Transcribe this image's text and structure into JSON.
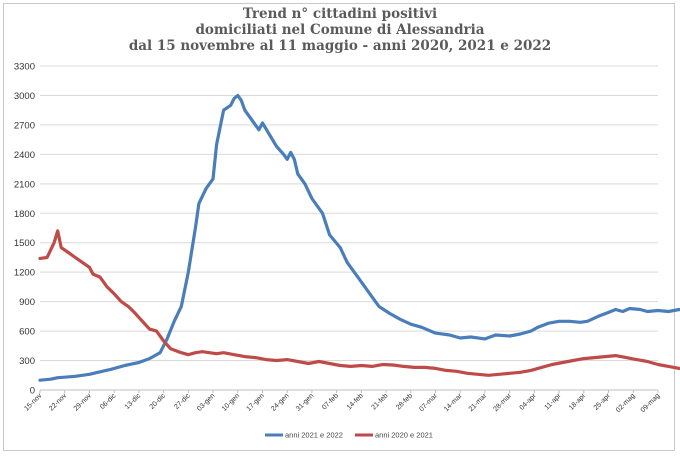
{
  "chart_data": {
    "type": "line",
    "title": [
      "Trend n° cittadini positivi",
      "domiciliati nel Comune di Alessandria",
      "dal 15 novembre al 11 maggio - anni 2020, 2021 e 2022"
    ],
    "xlabel": "",
    "ylabel": "",
    "ylim": [
      0,
      3300
    ],
    "yticks": [
      0,
      300,
      600,
      900,
      1200,
      1500,
      1800,
      2100,
      2400,
      2700,
      3000,
      3300
    ],
    "grid": true,
    "legend_position": "bottom",
    "xticks": [
      "15-nov",
      "22-nov",
      "29-nov",
      "06-dic",
      "13-dic",
      "20-dic",
      "27-dic",
      "03-gen",
      "10-gen",
      "17-gen",
      "24-gen",
      "31-gen",
      "07-feb",
      "14-feb",
      "21-feb",
      "28-feb",
      "07-mar",
      "14-mar",
      "21-mar",
      "28-mar",
      "04-apr",
      "11-apr",
      "18-apr",
      "25-apr",
      "02-mag",
      "09-mag"
    ],
    "series": [
      {
        "name": "anni 2021 e 2022",
        "color": "#4a7ebb",
        "points": [
          [
            0,
            100
          ],
          [
            3,
            110
          ],
          [
            5,
            125
          ],
          [
            7,
            130
          ],
          [
            10,
            140
          ],
          [
            14,
            160
          ],
          [
            17,
            185
          ],
          [
            20,
            210
          ],
          [
            24,
            250
          ],
          [
            28,
            280
          ],
          [
            31,
            320
          ],
          [
            34,
            380
          ],
          [
            36,
            520
          ],
          [
            38,
            700
          ],
          [
            40,
            850
          ],
          [
            42,
            1200
          ],
          [
            44,
            1650
          ],
          [
            45,
            1900
          ],
          [
            47,
            2050
          ],
          [
            49,
            2150
          ],
          [
            50,
            2500
          ],
          [
            52,
            2850
          ],
          [
            54,
            2900
          ],
          [
            55,
            2970
          ],
          [
            56,
            3000
          ],
          [
            57,
            2950
          ],
          [
            58,
            2850
          ],
          [
            60,
            2750
          ],
          [
            62,
            2650
          ],
          [
            63,
            2720
          ],
          [
            65,
            2600
          ],
          [
            67,
            2480
          ],
          [
            69,
            2400
          ],
          [
            70,
            2350
          ],
          [
            71,
            2420
          ],
          [
            72,
            2350
          ],
          [
            73,
            2200
          ],
          [
            75,
            2100
          ],
          [
            77,
            1950
          ],
          [
            80,
            1800
          ],
          [
            82,
            1580
          ],
          [
            85,
            1450
          ],
          [
            87,
            1300
          ],
          [
            90,
            1150
          ],
          [
            93,
            1000
          ],
          [
            96,
            850
          ],
          [
            99,
            780
          ],
          [
            102,
            720
          ],
          [
            105,
            670
          ],
          [
            108,
            640
          ],
          [
            112,
            580
          ],
          [
            116,
            560
          ],
          [
            119,
            530
          ],
          [
            122,
            540
          ],
          [
            126,
            520
          ],
          [
            129,
            560
          ],
          [
            133,
            550
          ],
          [
            136,
            570
          ],
          [
            139,
            600
          ],
          [
            141,
            640
          ],
          [
            144,
            680
          ],
          [
            147,
            700
          ],
          [
            150,
            700
          ],
          [
            153,
            690
          ],
          [
            155,
            700
          ],
          [
            158,
            750
          ],
          [
            161,
            790
          ],
          [
            163,
            820
          ],
          [
            165,
            800
          ],
          [
            167,
            830
          ],
          [
            170,
            820
          ],
          [
            172,
            800
          ],
          [
            175,
            810
          ],
          [
            178,
            800
          ],
          [
            181,
            820
          ],
          [
            184,
            800
          ],
          [
            187,
            810
          ],
          [
            190,
            830
          ],
          [
            193,
            850
          ],
          [
            195,
            820
          ],
          [
            197,
            800
          ],
          [
            200,
            770
          ],
          [
            203,
            720
          ],
          [
            206,
            650
          ],
          [
            209,
            600
          ],
          [
            211,
            580
          ],
          [
            213,
            570
          ],
          [
            215,
            570
          ]
        ]
      },
      {
        "name": "anni 2020 e 2021",
        "color": "#be4b48",
        "points": [
          [
            0,
            1340
          ],
          [
            2,
            1350
          ],
          [
            4,
            1500
          ],
          [
            5,
            1620
          ],
          [
            6,
            1450
          ],
          [
            8,
            1400
          ],
          [
            10,
            1350
          ],
          [
            12,
            1300
          ],
          [
            14,
            1250
          ],
          [
            15,
            1180
          ],
          [
            17,
            1150
          ],
          [
            19,
            1050
          ],
          [
            21,
            980
          ],
          [
            23,
            900
          ],
          [
            25,
            850
          ],
          [
            27,
            780
          ],
          [
            29,
            700
          ],
          [
            31,
            620
          ],
          [
            33,
            600
          ],
          [
            35,
            500
          ],
          [
            37,
            420
          ],
          [
            40,
            380
          ],
          [
            42,
            360
          ],
          [
            44,
            380
          ],
          [
            46,
            390
          ],
          [
            48,
            380
          ],
          [
            50,
            370
          ],
          [
            52,
            380
          ],
          [
            55,
            360
          ],
          [
            58,
            340
          ],
          [
            61,
            330
          ],
          [
            64,
            310
          ],
          [
            67,
            300
          ],
          [
            70,
            310
          ],
          [
            73,
            290
          ],
          [
            76,
            270
          ],
          [
            79,
            290
          ],
          [
            82,
            270
          ],
          [
            85,
            250
          ],
          [
            88,
            240
          ],
          [
            91,
            250
          ],
          [
            94,
            240
          ],
          [
            97,
            260
          ],
          [
            100,
            255
          ],
          [
            103,
            240
          ],
          [
            106,
            230
          ],
          [
            109,
            230
          ],
          [
            112,
            220
          ],
          [
            115,
            200
          ],
          [
            118,
            190
          ],
          [
            121,
            170
          ],
          [
            124,
            160
          ],
          [
            127,
            150
          ],
          [
            130,
            160
          ],
          [
            133,
            170
          ],
          [
            136,
            180
          ],
          [
            139,
            200
          ],
          [
            142,
            230
          ],
          [
            145,
            260
          ],
          [
            148,
            280
          ],
          [
            151,
            300
          ],
          [
            154,
            320
          ],
          [
            157,
            330
          ],
          [
            160,
            340
          ],
          [
            163,
            350
          ],
          [
            166,
            330
          ],
          [
            169,
            310
          ],
          [
            172,
            290
          ],
          [
            175,
            260
          ],
          [
            178,
            240
          ],
          [
            181,
            220
          ],
          [
            184,
            200
          ],
          [
            187,
            170
          ],
          [
            190,
            160
          ],
          [
            193,
            150
          ],
          [
            196,
            150
          ],
          [
            199,
            160
          ],
          [
            202,
            170
          ],
          [
            205,
            165
          ],
          [
            208,
            170
          ],
          [
            211,
            170
          ],
          [
            213,
            175
          ],
          [
            215,
            175
          ]
        ]
      }
    ]
  }
}
